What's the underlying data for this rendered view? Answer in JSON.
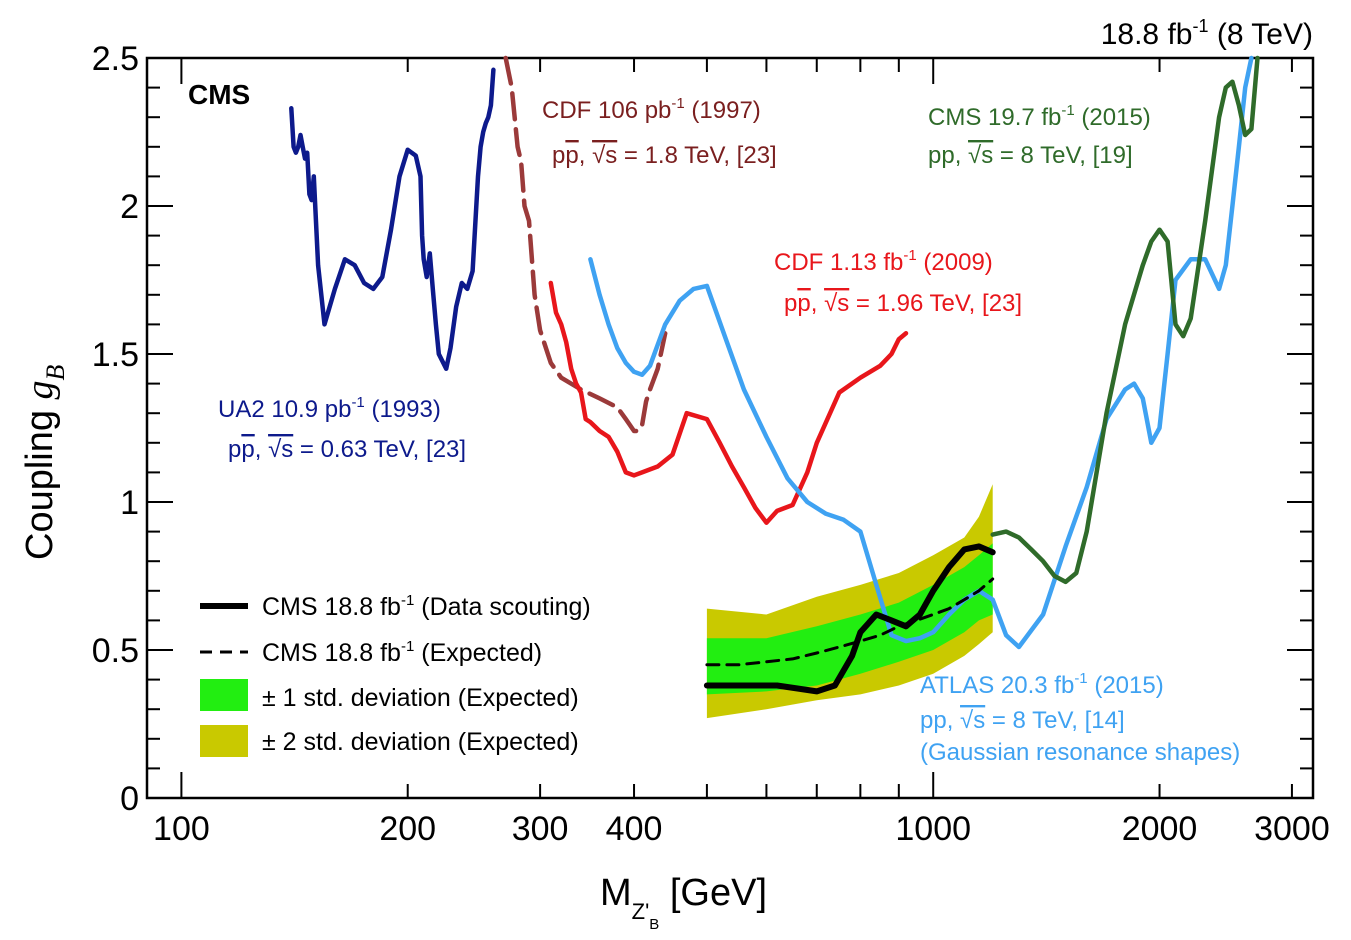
{
  "chart_data": {
    "type": "line",
    "title": "",
    "header_right": {
      "lumi": "18.8",
      "unit": "fb",
      "sup": "-1",
      "energy": "(8 TeV)"
    },
    "experiment_label": "CMS",
    "xlabel": {
      "main": "M",
      "sub": "Z'",
      "subsub": "B",
      "unit": "[GeV]"
    },
    "ylabel": {
      "main": "Coupling ",
      "symbol": "g",
      "sub": "B"
    },
    "xscale": "log",
    "xlim": [
      90,
      3200
    ],
    "ylim": [
      0,
      2.5
    ],
    "x_tick_labels": [
      "100",
      "200",
      "300",
      "400",
      "1000",
      "2000",
      "3000"
    ],
    "y_tick_labels": [
      "0",
      "0.5",
      "1",
      "1.5",
      "2",
      "2.5"
    ],
    "colors": {
      "ua2": "#0d1a8c",
      "cdf1997": "#9b3a3a",
      "cdf2009": "#e8161b",
      "atlas": "#3fa2f2",
      "cms2015": "#2f6b2a",
      "cms_obs": "#000000",
      "band1": "#22ee11",
      "band2": "#c9c900"
    },
    "annotations": [
      {
        "key": "ua2",
        "line1": {
          "a": "UA2 10.9 pb",
          "sup": "-1",
          "b": " (1993)"
        },
        "line2": {
          "a": "p",
          "bar": "p",
          "c": ", ",
          "rt": "√s",
          "d": " = 0.63 TeV, [23]"
        }
      },
      {
        "key": "cdf1997",
        "line1": {
          "a": "CDF 106 pb",
          "sup": "-1",
          "b": " (1997)"
        },
        "line2": {
          "a": "p",
          "bar": "p",
          "c": ", ",
          "rt": "√s",
          "d": " = 1.8 TeV, [23]"
        }
      },
      {
        "key": "cdf2009",
        "line1": {
          "a": "CDF 1.13 fb",
          "sup": "-1",
          "b": " (2009)"
        },
        "line2": {
          "a": "p",
          "bar": "p",
          "c": ", ",
          "rt": "√s",
          "d": " = 1.96 TeV, [23]"
        }
      },
      {
        "key": "cms2015",
        "line1": {
          "a": "CMS 19.7 fb",
          "sup": "-1",
          "b": " (2015)"
        },
        "line2": {
          "a": "pp, ",
          "rt": "√s",
          "d": " = 8 TeV, [19]"
        }
      },
      {
        "key": "atlas",
        "line1": {
          "a": "ATLAS 20.3 fb",
          "sup": "-1",
          "b": " (2015)"
        },
        "line2": {
          "a": "pp, ",
          "rt": "√s",
          "d": " = 8 TeV, [14]"
        },
        "line3": "(Gaussian resonance shapes)"
      }
    ],
    "legend": {
      "position": "bottom-left",
      "entries": [
        {
          "a": "CMS 18.8 fb",
          "sup": "-1",
          "b": " (Data scouting)",
          "style": "solid"
        },
        {
          "a": "CMS 18.8 fb",
          "sup": "-1",
          "b": " (Expected)",
          "style": "dashed"
        },
        {
          "a": "± 1 std. deviation (Expected)",
          "style": "band1"
        },
        {
          "a": "± 2 std. deviation (Expected)",
          "style": "band2"
        }
      ]
    },
    "series": [
      {
        "key": "ua2",
        "x": [
          140,
          141,
          142,
          143,
          144,
          145,
          146,
          147,
          148,
          149,
          150,
          152,
          155,
          160,
          165,
          170,
          175,
          180,
          185,
          190,
          195,
          200,
          205,
          208,
          209,
          210,
          212,
          214,
          215,
          216,
          218,
          220,
          225,
          228,
          232,
          236,
          240,
          244,
          248,
          250,
          252,
          254,
          256,
          258,
          260
        ],
        "y": [
          2.33,
          2.2,
          2.18,
          2.2,
          2.24,
          2.2,
          2.16,
          2.18,
          2.04,
          2.02,
          2.1,
          1.8,
          1.6,
          1.72,
          1.82,
          1.8,
          1.74,
          1.72,
          1.76,
          1.92,
          2.1,
          2.19,
          2.17,
          2.1,
          1.9,
          1.82,
          1.76,
          1.84,
          1.78,
          1.72,
          1.6,
          1.5,
          1.45,
          1.52,
          1.66,
          1.74,
          1.72,
          1.78,
          2.1,
          2.2,
          2.25,
          2.28,
          2.3,
          2.34,
          2.46
        ]
      },
      {
        "key": "cdf1997",
        "dashed": true,
        "x": [
          270,
          275,
          280,
          283,
          286,
          290,
          295,
          300,
          310,
          320,
          340,
          360,
          380,
          390,
          395,
          400,
          405,
          410,
          415,
          420,
          430,
          440
        ],
        "y": [
          2.5,
          2.4,
          2.2,
          2.15,
          2.0,
          1.95,
          1.7,
          1.58,
          1.47,
          1.42,
          1.38,
          1.35,
          1.32,
          1.28,
          1.26,
          1.24,
          1.24,
          1.26,
          1.34,
          1.38,
          1.45,
          1.57
        ]
      },
      {
        "key": "cdf2009",
        "x": [
          310,
          315,
          320,
          325,
          330,
          335,
          340,
          345,
          350,
          360,
          370,
          380,
          390,
          400,
          410,
          420,
          430,
          450,
          470,
          500,
          520,
          540,
          560,
          580,
          600,
          620,
          650,
          680,
          700,
          750,
          800,
          850,
          880,
          900,
          920
        ],
        "y": [
          1.74,
          1.64,
          1.6,
          1.54,
          1.45,
          1.4,
          1.37,
          1.28,
          1.27,
          1.24,
          1.22,
          1.17,
          1.1,
          1.09,
          1.1,
          1.11,
          1.12,
          1.16,
          1.3,
          1.28,
          1.2,
          1.12,
          1.05,
          0.98,
          0.93,
          0.97,
          0.99,
          1.1,
          1.2,
          1.37,
          1.42,
          1.46,
          1.5,
          1.55,
          1.57
        ]
      },
      {
        "key": "atlas",
        "x": [
          350,
          360,
          370,
          380,
          390,
          400,
          410,
          420,
          440,
          460,
          480,
          500,
          530,
          560,
          600,
          640,
          680,
          720,
          760,
          800,
          840,
          880,
          920,
          960,
          1000,
          1050,
          1100,
          1150,
          1200,
          1250,
          1300,
          1400,
          1500,
          1600,
          1700,
          1800,
          1850,
          1900,
          1950,
          2000,
          2050,
          2100,
          2200,
          2300,
          2400,
          2450,
          2500,
          2550,
          2600,
          2650
        ],
        "y": [
          1.82,
          1.7,
          1.6,
          1.52,
          1.47,
          1.44,
          1.43,
          1.46,
          1.6,
          1.68,
          1.72,
          1.73,
          1.55,
          1.38,
          1.22,
          1.08,
          1.0,
          0.96,
          0.94,
          0.9,
          0.72,
          0.55,
          0.53,
          0.54,
          0.56,
          0.62,
          0.67,
          0.7,
          0.67,
          0.55,
          0.51,
          0.62,
          0.85,
          1.05,
          1.28,
          1.38,
          1.4,
          1.35,
          1.2,
          1.25,
          1.5,
          1.75,
          1.82,
          1.82,
          1.72,
          1.8,
          2.0,
          2.2,
          2.4,
          2.5
        ]
      },
      {
        "key": "cms2015",
        "x": [
          1200,
          1250,
          1300,
          1350,
          1400,
          1450,
          1500,
          1550,
          1600,
          1700,
          1800,
          1900,
          1950,
          2000,
          2050,
          2100,
          2150,
          2200,
          2300,
          2400,
          2450,
          2500,
          2550,
          2600,
          2650,
          2700
        ],
        "y": [
          0.89,
          0.9,
          0.88,
          0.84,
          0.8,
          0.75,
          0.73,
          0.76,
          0.9,
          1.3,
          1.6,
          1.8,
          1.88,
          1.92,
          1.88,
          1.6,
          1.56,
          1.62,
          1.95,
          2.3,
          2.4,
          2.42,
          2.34,
          2.24,
          2.26,
          2.5
        ]
      },
      {
        "key": "cms_obs",
        "x": [
          500,
          540,
          580,
          620,
          660,
          700,
          740,
          780,
          800,
          840,
          880,
          920,
          960,
          1000,
          1050,
          1100,
          1150,
          1200
        ],
        "y": [
          0.38,
          0.38,
          0.38,
          0.38,
          0.37,
          0.36,
          0.38,
          0.48,
          0.56,
          0.62,
          0.6,
          0.58,
          0.62,
          0.7,
          0.78,
          0.84,
          0.85,
          0.83
        ]
      },
      {
        "key": "cms_exp",
        "dashed": true,
        "x": [
          500,
          550,
          600,
          650,
          700,
          750,
          800,
          850,
          900,
          950,
          1000,
          1050,
          1100,
          1150,
          1200
        ],
        "y": [
          0.45,
          0.45,
          0.46,
          0.47,
          0.49,
          0.51,
          0.53,
          0.55,
          0.58,
          0.6,
          0.62,
          0.64,
          0.67,
          0.7,
          0.74
        ]
      }
    ],
    "bands": [
      {
        "key": "band2",
        "x": [
          500,
          600,
          700,
          800,
          900,
          1000,
          1100,
          1150,
          1200
        ],
        "low": [
          0.27,
          0.3,
          0.33,
          0.35,
          0.38,
          0.42,
          0.48,
          0.52,
          0.56
        ],
        "high": [
          0.64,
          0.62,
          0.68,
          0.72,
          0.76,
          0.82,
          0.88,
          0.95,
          1.06
        ]
      },
      {
        "key": "band1",
        "x": [
          500,
          600,
          700,
          800,
          900,
          1000,
          1100,
          1150,
          1200
        ],
        "low": [
          0.35,
          0.36,
          0.38,
          0.42,
          0.46,
          0.5,
          0.56,
          0.6,
          0.62
        ],
        "high": [
          0.54,
          0.54,
          0.58,
          0.62,
          0.66,
          0.72,
          0.78,
          0.82,
          0.86
        ]
      }
    ]
  }
}
